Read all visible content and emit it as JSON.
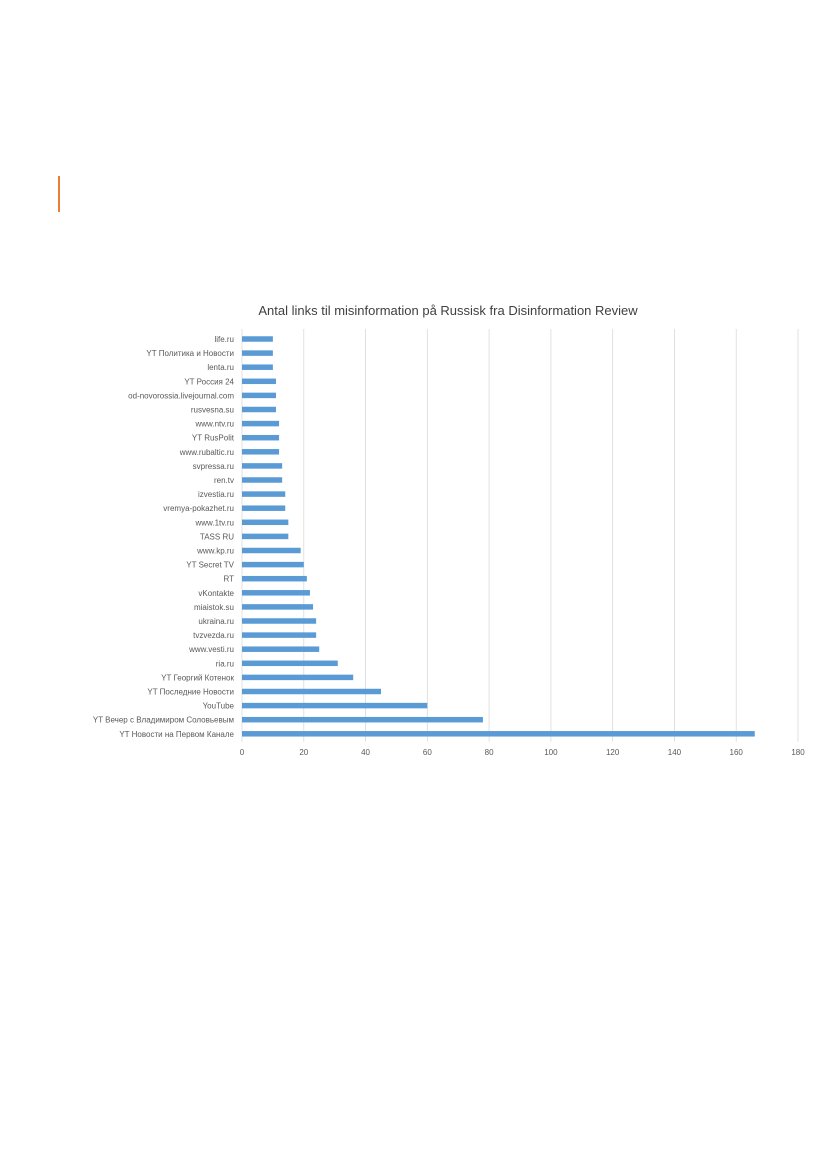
{
  "page": {
    "accent_color": "#ED7D31"
  },
  "chart_data": {
    "type": "bar",
    "orientation": "horizontal",
    "title": "Antal links til misinformation på Russisk fra Disinformation Review",
    "categories": [
      "life.ru",
      "YT Политика и Новости",
      "lenta.ru",
      "YT Россия 24",
      "od-novorossia.livejournal.com",
      "rusvesna.su",
      "www.ntv.ru",
      "YT RusPolit",
      "www.rubaltic.ru",
      "svpressa.ru",
      "ren.tv",
      "izvestia.ru",
      "vremya-pokazhet.ru",
      "www.1tv.ru",
      "TASS RU",
      "www.kp.ru",
      "YT Secret TV",
      "RT",
      "vKontakte",
      "miaistok.su",
      "ukraina.ru",
      "tvzvezda.ru",
      "www.vesti.ru",
      "ria.ru",
      "YT Георгий Котенок",
      "YT Последние Новости",
      "YouTube",
      "YT Вечер с Владимиром Соловьевым",
      "YT Новости на Первом Канале"
    ],
    "values": [
      10,
      10,
      10,
      11,
      11,
      11,
      12,
      12,
      12,
      13,
      13,
      14,
      14,
      15,
      15,
      19,
      20,
      21,
      22,
      23,
      24,
      24,
      25,
      31,
      36,
      45,
      60,
      78,
      166
    ],
    "xlim": [
      0,
      180
    ],
    "xticks": [
      0,
      20,
      40,
      60,
      80,
      100,
      120,
      140,
      160,
      180
    ],
    "grid": "vertical",
    "legend": "none",
    "bar_color": "#5B9BD5",
    "grid_color": "#D9D9D9",
    "title_color": "#404040",
    "label_color": "#595959"
  }
}
